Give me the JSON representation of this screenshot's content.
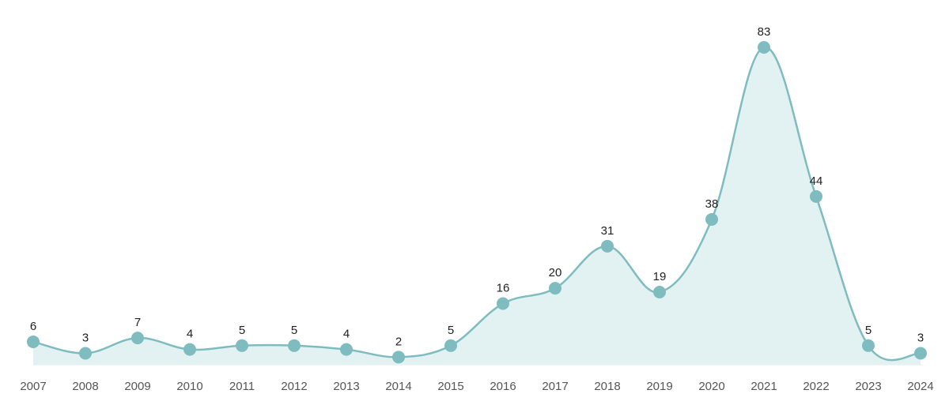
{
  "chart_data": {
    "type": "area",
    "title": "",
    "xlabel": "",
    "ylabel": "",
    "categories": [
      "2007",
      "2008",
      "2009",
      "2010",
      "2011",
      "2012",
      "2013",
      "2014",
      "2015",
      "2016",
      "2017",
      "2018",
      "2019",
      "2020",
      "2021",
      "2022",
      "2023",
      "2024"
    ],
    "series": [
      {
        "values": [
          6,
          3,
          7,
          4,
          5,
          5,
          4,
          2,
          5,
          16,
          20,
          31,
          19,
          38,
          83,
          44,
          5,
          3
        ]
      }
    ],
    "ylim": [
      0,
      83
    ],
    "grid": false,
    "legend": "none",
    "colors": {
      "line": "#7fbcbf",
      "fill": "#e2f2f2",
      "point": "#7fbcbf"
    }
  }
}
